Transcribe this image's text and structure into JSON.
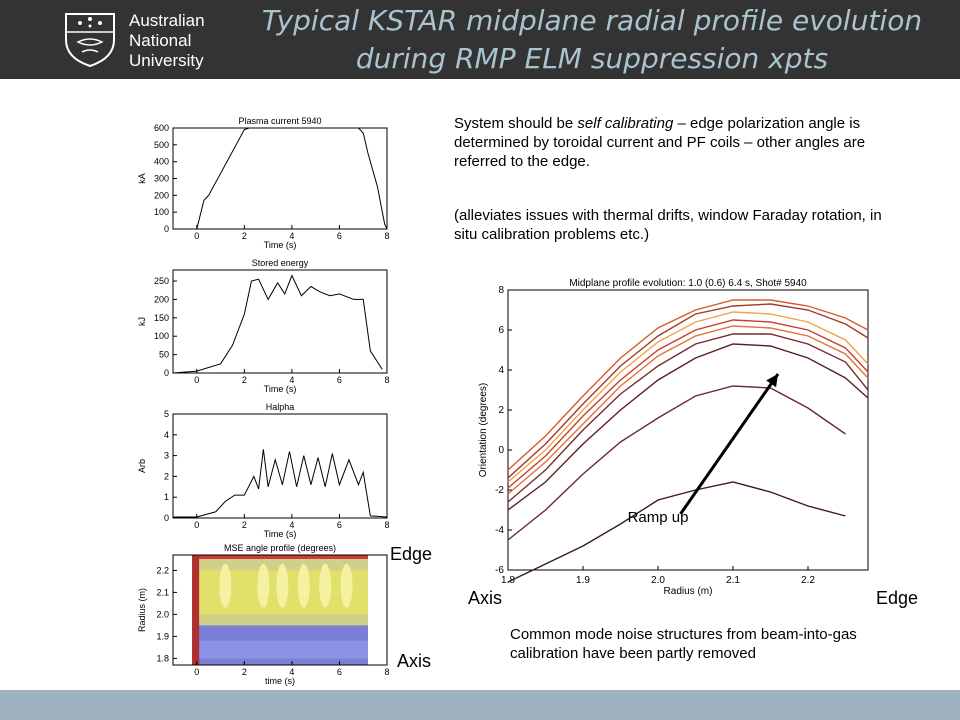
{
  "header": {
    "university": [
      "Australian",
      "National",
      "University"
    ],
    "title_line1": "Typical KSTAR midplane radial profile evolution",
    "title_line2": "during RMP ELM suppression xpts",
    "logo_icon": "anu-crest-icon"
  },
  "colors": {
    "header_bg": "#333333",
    "title": "#a9c3cf",
    "footer_bg": "#9fb2bf"
  },
  "text": {
    "para1_before": "System should be ",
    "para1_em": "self calibrating",
    "para1_after": " – edge polarization angle is determined by toroidal current and PF coils – other angles are referred to the edge.",
    "para2": "(alleviates issues with thermal drifts, window Faraday rotation, in situ calibration problems etc.)",
    "bottom_note": "Common mode noise structures from beam-into-gas calibration have been partly removed",
    "label_edge_left": "Edge",
    "label_axis_left": "Axis",
    "label_axis_right": "Axis",
    "label_edge_right": "Edge"
  },
  "chart_data": [
    {
      "type": "line",
      "title": "Plasma current 5940",
      "xlabel": "Time (s)",
      "ylabel": "kA",
      "xlim": [
        -1,
        8
      ],
      "ylim": [
        0,
        600
      ],
      "xticks": [
        "0",
        "2",
        "4",
        "6",
        "8"
      ],
      "yticks": [
        "0",
        "100",
        "200",
        "300",
        "400",
        "500",
        "600"
      ],
      "x": [
        -1,
        0,
        0.3,
        0.5,
        2.0,
        2.2,
        6.8,
        7.0,
        7.2,
        7.6,
        7.9,
        8.0
      ],
      "y": [
        0,
        0,
        170,
        200,
        590,
        600,
        600,
        570,
        450,
        250,
        30,
        0
      ]
    },
    {
      "type": "line",
      "title": "Stored energy",
      "xlabel": "Time (s)",
      "ylabel": "kJ",
      "xlim": [
        -1,
        8
      ],
      "ylim": [
        0,
        280
      ],
      "xticks": [
        "0",
        "2",
        "4",
        "6",
        "8"
      ],
      "yticks": [
        "0",
        "50",
        "100",
        "150",
        "200",
        "250"
      ],
      "x": [
        -1,
        0,
        1,
        1.5,
        2.0,
        2.3,
        2.6,
        3.0,
        3.4,
        3.7,
        4.0,
        4.4,
        4.8,
        5.2,
        5.6,
        6.0,
        6.6,
        7.0,
        7.3,
        7.6,
        7.8
      ],
      "y": [
        0,
        5,
        25,
        75,
        160,
        250,
        255,
        200,
        245,
        215,
        265,
        210,
        235,
        220,
        210,
        215,
        200,
        200,
        60,
        30,
        10
      ]
    },
    {
      "type": "line",
      "title": "Halpha",
      "xlabel": "Time (s)",
      "ylabel": "Arb",
      "xlim": [
        -1,
        8
      ],
      "ylim": [
        0,
        5
      ],
      "xticks": [
        "0",
        "2",
        "4",
        "6",
        "8"
      ],
      "yticks": [
        "0",
        "1",
        "2",
        "3",
        "4",
        "5"
      ],
      "x": [
        -1,
        0,
        0.8,
        1.2,
        1.6,
        2.0,
        2.4,
        2.6,
        2.8,
        3.0,
        3.3,
        3.6,
        3.9,
        4.2,
        4.5,
        4.8,
        5.1,
        5.4,
        5.7,
        6.0,
        6.4,
        6.8,
        7.0,
        7.3,
        8.0
      ],
      "y": [
        0.05,
        0.05,
        0.3,
        0.8,
        1.1,
        1.1,
        2.0,
        1.4,
        3.3,
        1.5,
        2.8,
        1.6,
        3.2,
        1.5,
        3.0,
        1.6,
        2.9,
        1.5,
        3.1,
        1.6,
        2.8,
        1.6,
        2.2,
        0.1,
        0.05
      ]
    },
    {
      "type": "heatmap",
      "title": "MSE angle profile (degrees)",
      "xlabel": "time (s)",
      "ylabel": "Radius (m)",
      "xlim": [
        -1,
        8
      ],
      "ylim": [
        1.77,
        2.27
      ],
      "xticks": [
        "0",
        "2",
        "4",
        "6",
        "8"
      ],
      "yticks": [
        "1.8",
        "1.9",
        "2.0",
        "2.1",
        "2.2"
      ]
    },
    {
      "type": "line",
      "title": "Midplane profile evolution: 1.0 (0.6) 6.4 s,  Shot# 5940",
      "xlabel": "Radius (m)",
      "ylabel": "Orientation (degrees)",
      "xlim": [
        1.8,
        2.28
      ],
      "ylim": [
        -6,
        8
      ],
      "xticks": [
        "1.8",
        "1.9",
        "2.0",
        "2.1",
        "2.2"
      ],
      "yticks": [
        "-6",
        "-4",
        "-2",
        "0",
        "2",
        "4",
        "6",
        "8"
      ],
      "x": [
        1.8,
        1.85,
        1.9,
        1.95,
        2.0,
        2.05,
        2.1,
        2.15,
        2.2,
        2.25,
        2.28
      ],
      "series": [
        {
          "color": "#3d1a1a",
          "values": [
            -6.6,
            -5.7,
            -4.8,
            -3.7,
            -2.5,
            -2.0,
            -1.6,
            -2.1,
            -2.8,
            -3.3,
            null
          ]
        },
        {
          "color": "#6b2a2f",
          "values": [
            -4.5,
            -3.0,
            -1.2,
            0.4,
            1.6,
            2.7,
            3.2,
            3.1,
            2.1,
            0.8,
            null
          ]
        },
        {
          "color": "#5a1e26",
          "values": [
            -3.0,
            -1.6,
            0.3,
            2.0,
            3.5,
            4.6,
            5.3,
            5.2,
            4.6,
            3.6,
            2.6
          ]
        },
        {
          "color": "#7a2a2a",
          "values": [
            -2.6,
            -1.0,
            1.0,
            2.8,
            4.2,
            5.3,
            5.8,
            5.8,
            5.3,
            4.4,
            3.0
          ]
        },
        {
          "color": "#e2703a",
          "values": [
            -2.2,
            -0.6,
            1.3,
            3.2,
            4.7,
            5.7,
            6.2,
            6.1,
            5.7,
            4.8,
            3.6
          ]
        },
        {
          "color": "#c5402d",
          "values": [
            -1.9,
            -0.3,
            1.7,
            3.5,
            5.0,
            6.0,
            6.5,
            6.4,
            6.0,
            5.1,
            3.9
          ]
        },
        {
          "color": "#f2a248",
          "values": [
            -1.6,
            0.0,
            2.0,
            3.9,
            5.4,
            6.4,
            6.9,
            6.8,
            6.4,
            5.5,
            4.3
          ]
        },
        {
          "color": "#a23a2c",
          "values": [
            -1.4,
            0.3,
            2.3,
            4.2,
            5.7,
            6.8,
            7.2,
            7.3,
            7.0,
            6.3,
            5.6
          ]
        },
        {
          "color": "#d85a2d",
          "values": [
            -1.0,
            0.7,
            2.7,
            4.6,
            6.1,
            7.0,
            7.5,
            7.5,
            7.2,
            6.6,
            6.0
          ]
        }
      ],
      "annotation": "Ramp up"
    }
  ]
}
